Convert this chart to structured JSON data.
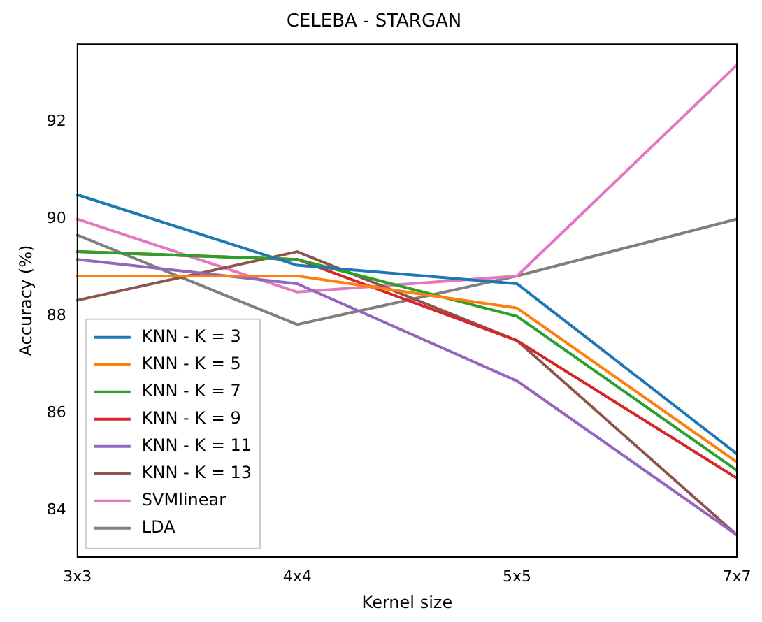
{
  "chart_data": {
    "type": "line",
    "title": "CELEBA - STARGAN",
    "xlabel": "Kernel size",
    "ylabel": "Accuracy (%)",
    "categories": [
      "3x3",
      "4x4",
      "5x5",
      "7x7"
    ],
    "series": [
      {
        "name": "KNN - K = 3",
        "color": "#1f77b4",
        "values": [
          90.5,
          89.05,
          88.67,
          85.17
        ]
      },
      {
        "name": "KNN - K = 5",
        "color": "#ff7f0e",
        "values": [
          88.83,
          88.83,
          88.17,
          85.0
        ]
      },
      {
        "name": "KNN - K = 7",
        "color": "#2ca02c",
        "values": [
          89.33,
          89.17,
          88.0,
          84.83
        ]
      },
      {
        "name": "KNN - K = 9",
        "color": "#d62728",
        "values": [
          89.33,
          89.17,
          87.5,
          84.67
        ]
      },
      {
        "name": "KNN - K = 11",
        "color": "#9467bd",
        "values": [
          89.17,
          88.67,
          86.67,
          83.5
        ]
      },
      {
        "name": "KNN - K = 13",
        "color": "#8c564b",
        "values": [
          88.33,
          89.33,
          87.5,
          83.5
        ]
      },
      {
        "name": "SVMlinear",
        "color": "#e377c2",
        "values": [
          90.0,
          88.5,
          88.83,
          93.17
        ]
      },
      {
        "name": "LDA",
        "color": "#7f7f7f",
        "values": [
          89.67,
          87.83,
          88.83,
          90.0
        ]
      }
    ],
    "ylim": [
      83.05,
      93.6
    ],
    "yticks": [
      84,
      86,
      88,
      90,
      92
    ],
    "grid": false,
    "legend": "bottom left",
    "marker": "none",
    "line_style": "solid"
  }
}
